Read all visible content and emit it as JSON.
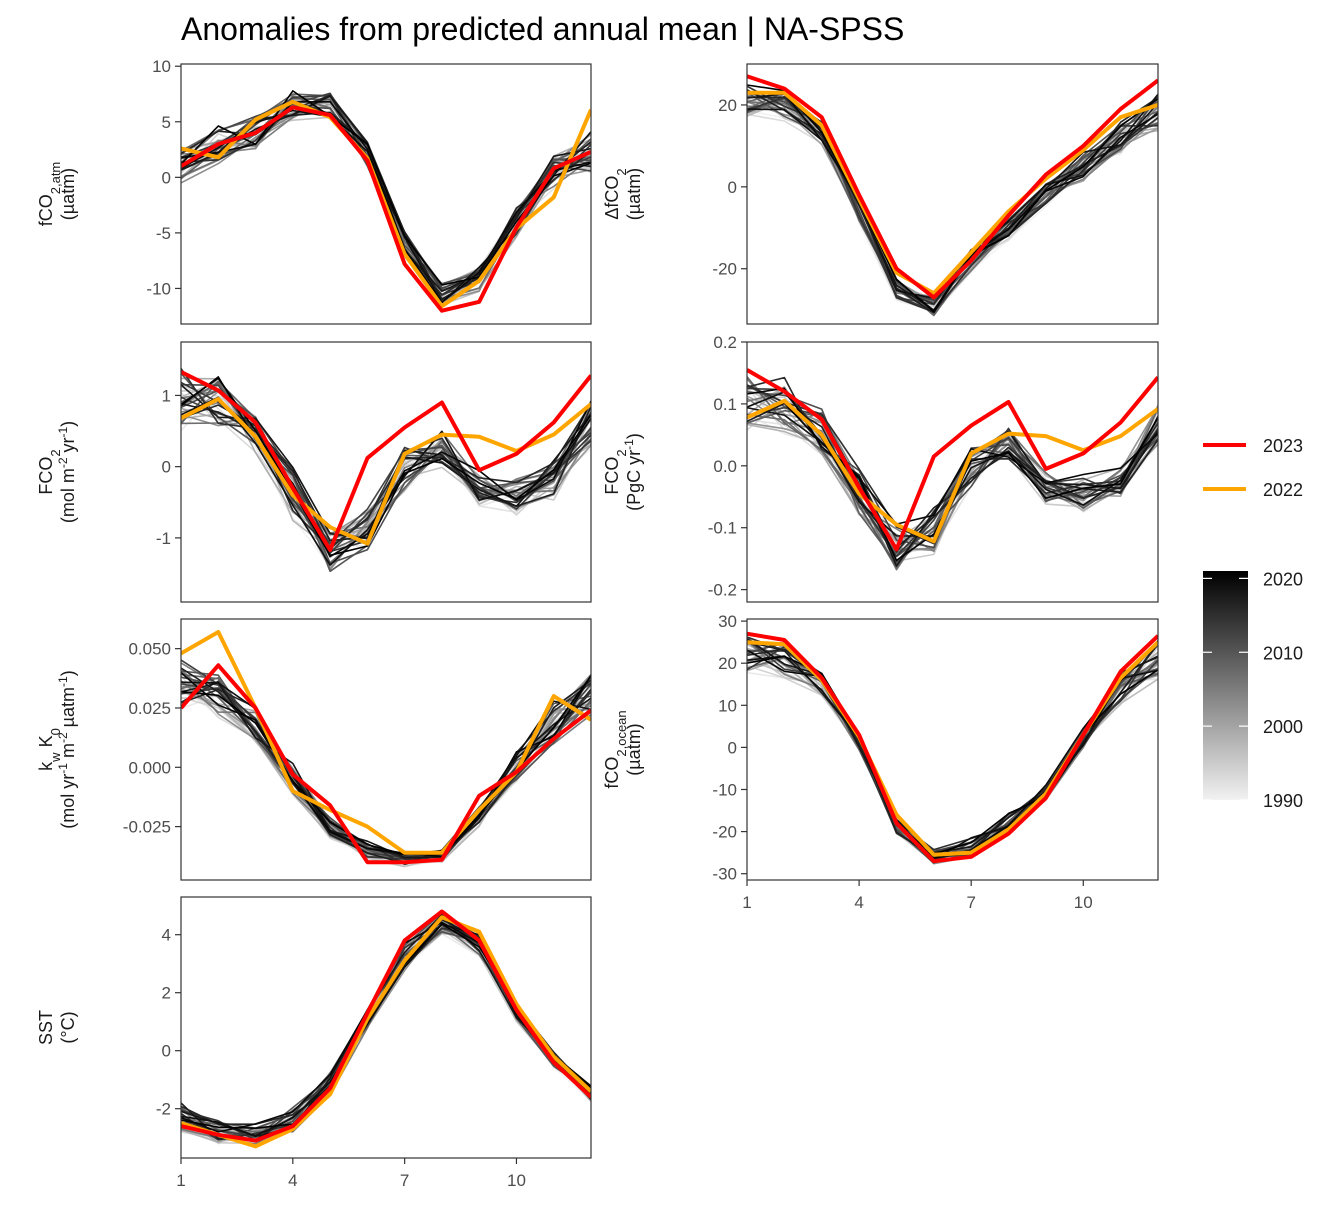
{
  "title": "Anomalies from predicted annual mean | NA-SPSS",
  "legend": {
    "highlight": [
      {
        "label": "2023",
        "color": "#ff0000"
      },
      {
        "label": "2022",
        "color": "#ffa500"
      }
    ],
    "colorbar": {
      "labels": [
        "2020",
        "2010",
        "2000",
        "1990"
      ],
      "min": 1990,
      "max": 2021,
      "low_color": "#f2f2f2",
      "high_color": "#000000"
    }
  },
  "colors": {
    "y2023": "#ff0000",
    "y2022": "#ffa500",
    "background_low": "#f2f2f2",
    "background_high": "#000000"
  },
  "chart_data": [
    {
      "type": "line",
      "panel": "fco2-atm",
      "ylabel_lines": [
        [
          "fCO",
          "2,atm"
        ],
        [
          "(µatm)"
        ]
      ],
      "x": [
        1,
        2,
        3,
        4,
        5,
        6,
        7,
        8,
        9,
        10,
        11,
        12
      ],
      "xlim": [
        1,
        12
      ],
      "ylim": [
        -13.2,
        10.2
      ],
      "yticks": [
        10,
        5,
        0,
        -5,
        -10
      ],
      "ytick_labels": [
        "10",
        "5",
        "0",
        "-5",
        "-10"
      ],
      "series": [
        {
          "name": "2023",
          "values": [
            1.0,
            3.0,
            4.0,
            6.3,
            5.6,
            1.5,
            -7.8,
            -12.0,
            -11.2,
            -4.5,
            0.8,
            2.3
          ]
        },
        {
          "name": "2022",
          "values": [
            2.6,
            1.8,
            5.2,
            6.8,
            5.4,
            1.7,
            -6.9,
            -11.6,
            -9.3,
            -4.6,
            -1.8,
            6.1
          ]
        }
      ],
      "background_envelope": {
        "mean": [
          1.2,
          2.6,
          3.9,
          6.4,
          6.2,
          2.0,
          -6.0,
          -10.6,
          -9.0,
          -3.8,
          0.6,
          2.2
        ],
        "spread": [
          2.0,
          2.0,
          1.8,
          1.5,
          1.5,
          1.3,
          1.3,
          1.2,
          1.4,
          1.8,
          1.8,
          2.2
        ]
      }
    },
    {
      "type": "line",
      "panel": "delta-fco2",
      "ylabel_lines": [
        [
          "ΔfCO",
          "2"
        ],
        [
          "(µatm)"
        ]
      ],
      "x": [
        1,
        2,
        3,
        4,
        5,
        6,
        7,
        8,
        9,
        10,
        11,
        12
      ],
      "xlim": [
        1,
        12
      ],
      "ylim": [
        -33.5,
        30
      ],
      "yticks": [
        20,
        0,
        -20
      ],
      "ytick_labels": [
        "20",
        "0",
        "-20"
      ],
      "series": [
        {
          "name": "2023",
          "values": [
            27,
            24,
            17,
            -2,
            -20,
            -27,
            -18,
            -7,
            3,
            10,
            19,
            26
          ]
        },
        {
          "name": "2022",
          "values": [
            23,
            23,
            15,
            -3,
            -21,
            -26,
            -16,
            -6,
            2,
            9,
            17,
            20
          ]
        }
      ],
      "background_envelope": {
        "mean": [
          21,
          20,
          13,
          -6,
          -25,
          -29,
          -18,
          -10,
          -2,
          5,
          12,
          18
        ],
        "spread": [
          4,
          4,
          3,
          3,
          3,
          3,
          3,
          3,
          3,
          4,
          4,
          5
        ]
      }
    },
    {
      "type": "line",
      "panel": "fco2-flux-area",
      "ylabel_lines": [
        [
          "FCO",
          "2"
        ],
        [
          "(mol m",
          "-2",
          " yr",
          "-1",
          ")"
        ]
      ],
      "x": [
        1,
        2,
        3,
        4,
        5,
        6,
        7,
        8,
        9,
        10,
        11,
        12
      ],
      "xlim": [
        1,
        12
      ],
      "ylim": [
        -1.9,
        1.75
      ],
      "yticks": [
        1,
        0,
        -1
      ],
      "ytick_labels": [
        "1",
        "0",
        "-1"
      ],
      "series": [
        {
          "name": "2023",
          "values": [
            1.33,
            1.07,
            0.62,
            -0.3,
            -1.17,
            0.12,
            0.55,
            0.9,
            -0.05,
            0.18,
            0.62,
            1.28
          ]
        },
        {
          "name": "2022",
          "values": [
            0.68,
            0.95,
            0.42,
            -0.4,
            -0.85,
            -1.08,
            0.18,
            0.45,
            0.42,
            0.22,
            0.45,
            0.88
          ]
        }
      ],
      "background_envelope": {
        "mean": [
          0.95,
          0.9,
          0.5,
          -0.4,
          -1.2,
          -0.9,
          -0.05,
          0.25,
          -0.3,
          -0.4,
          -0.2,
          0.6
        ],
        "spread": [
          0.45,
          0.45,
          0.35,
          0.4,
          0.35,
          0.35,
          0.35,
          0.3,
          0.25,
          0.3,
          0.3,
          0.35
        ]
      }
    },
    {
      "type": "line",
      "panel": "fco2-flux-total",
      "ylabel_lines": [
        [
          "FCO",
          "2"
        ],
        [
          "(PgC yr",
          "-1",
          ")"
        ]
      ],
      "x": [
        1,
        2,
        3,
        4,
        5,
        6,
        7,
        8,
        9,
        10,
        11,
        12
      ],
      "xlim": [
        1,
        12
      ],
      "ylim": [
        -0.22,
        0.2
      ],
      "yticks": [
        0.2,
        0.1,
        0.0,
        -0.1,
        -0.2
      ],
      "ytick_labels": [
        "0.2",
        "0.1",
        "0.0",
        "-0.1",
        "-0.2"
      ],
      "series": [
        {
          "name": "2023",
          "values": [
            0.155,
            0.12,
            0.075,
            -0.035,
            -0.135,
            0.015,
            0.065,
            0.103,
            -0.005,
            0.02,
            0.07,
            0.143
          ]
        },
        {
          "name": "2022",
          "values": [
            0.078,
            0.105,
            0.05,
            -0.045,
            -0.095,
            -0.122,
            0.02,
            0.052,
            0.048,
            0.025,
            0.048,
            0.092
          ]
        }
      ],
      "background_envelope": {
        "mean": [
          0.105,
          0.1,
          0.055,
          -0.045,
          -0.135,
          -0.105,
          -0.005,
          0.03,
          -0.035,
          -0.045,
          -0.025,
          0.065
        ],
        "spread": [
          0.05,
          0.05,
          0.04,
          0.045,
          0.04,
          0.04,
          0.04,
          0.035,
          0.03,
          0.03,
          0.03,
          0.04
        ]
      }
    },
    {
      "type": "line",
      "panel": "kw-k0",
      "ylabel_lines": [
        [
          "k",
          "w",
          " K",
          "0"
        ],
        [
          "(mol yr",
          "-1",
          " m",
          "-2",
          " µatm",
          "-1",
          ")"
        ]
      ],
      "x": [
        1,
        2,
        3,
        4,
        5,
        6,
        7,
        8,
        9,
        10,
        11,
        12
      ],
      "xlim": [
        1,
        12
      ],
      "ylim": [
        -0.0475,
        0.0625
      ],
      "yticks": [
        0.05,
        0.025,
        0.0,
        -0.025
      ],
      "ytick_labels": [
        "0.050",
        "0.025",
        "0.000",
        "-0.025"
      ],
      "series": [
        {
          "name": "2023",
          "values": [
            0.025,
            0.043,
            0.025,
            -0.003,
            -0.016,
            -0.04,
            -0.04,
            -0.039,
            -0.012,
            -0.002,
            0.012,
            0.024
          ]
        },
        {
          "name": "2022",
          "values": [
            0.048,
            0.057,
            0.025,
            -0.01,
            -0.018,
            -0.025,
            -0.036,
            -0.036,
            -0.018,
            -0.002,
            0.03,
            0.02
          ]
        }
      ],
      "background_envelope": {
        "mean": [
          0.035,
          0.03,
          0.018,
          -0.005,
          -0.025,
          -0.035,
          -0.039,
          -0.037,
          -0.02,
          0.0,
          0.018,
          0.03
        ],
        "spread": [
          0.012,
          0.01,
          0.008,
          0.007,
          0.005,
          0.004,
          0.003,
          0.003,
          0.005,
          0.007,
          0.01,
          0.012
        ]
      }
    },
    {
      "type": "line",
      "panel": "fco2-ocean",
      "ylabel_lines": [
        [
          "fCO",
          "2,ocean"
        ],
        [
          "(µatm)"
        ]
      ],
      "x": [
        1,
        2,
        3,
        4,
        5,
        6,
        7,
        8,
        9,
        10,
        11,
        12
      ],
      "xlim": [
        1,
        12
      ],
      "ylim": [
        -31.5,
        30.5
      ],
      "yticks": [
        30,
        20,
        10,
        0,
        -10,
        -20,
        -30
      ],
      "ytick_labels": [
        "30",
        "20",
        "10",
        "0",
        "-10",
        "-20",
        "-30"
      ],
      "series": [
        {
          "name": "2023",
          "values": [
            27,
            25.5,
            16.5,
            3,
            -18,
            -27,
            -26,
            -20.5,
            -12,
            3,
            18,
            26.5
          ]
        },
        {
          "name": "2022",
          "values": [
            25,
            24.5,
            16,
            2.5,
            -16,
            -25.5,
            -25,
            -19.5,
            -11,
            3,
            16.5,
            25
          ]
        }
      ],
      "background_envelope": {
        "mean": [
          22,
          21,
          15,
          1,
          -19,
          -26,
          -24,
          -18,
          -11,
          2,
          14,
          21
        ],
        "spread": [
          5,
          4.5,
          3,
          2,
          2,
          2,
          2.5,
          2.5,
          2,
          3,
          4,
          5
        ]
      }
    },
    {
      "type": "line",
      "panel": "sst",
      "ylabel_lines": [
        [
          "SST"
        ],
        [
          "(°C)"
        ]
      ],
      "x": [
        1,
        2,
        3,
        4,
        5,
        6,
        7,
        8,
        9,
        10,
        11,
        12
      ],
      "xlim": [
        1,
        12
      ],
      "ylim": [
        -3.7,
        5.3
      ],
      "yticks": [
        4,
        2,
        0,
        -2
      ],
      "ytick_labels": [
        "4",
        "2",
        "0",
        "-2"
      ],
      "xticks": [
        1,
        4,
        7,
        10
      ],
      "xtick_labels": [
        "1",
        "4",
        "7",
        "10"
      ],
      "series": [
        {
          "name": "2023",
          "values": [
            -2.6,
            -2.9,
            -3.1,
            -2.6,
            -1.3,
            1.3,
            3.8,
            4.8,
            3.8,
            1.4,
            -0.4,
            -1.6
          ]
        },
        {
          "name": "2022",
          "values": [
            -2.5,
            -2.9,
            -3.3,
            -2.7,
            -1.5,
            1.1,
            3.1,
            4.6,
            4.1,
            1.6,
            -0.2,
            -1.4
          ]
        }
      ],
      "background_envelope": {
        "mean": [
          -2.3,
          -2.8,
          -2.9,
          -2.4,
          -1.1,
          1.1,
          3.2,
          4.4,
          3.6,
          1.3,
          -0.3,
          -1.5
        ],
        "spread": [
          0.5,
          0.4,
          0.4,
          0.5,
          0.5,
          0.4,
          0.5,
          0.4,
          0.4,
          0.3,
          0.3,
          0.3
        ]
      }
    },
    {
      "type": "axis",
      "panel": "fco2-ocean-xaxis",
      "xticks": [
        1,
        4,
        7,
        10
      ],
      "xtick_labels": [
        "1",
        "4",
        "7",
        "10"
      ]
    }
  ]
}
